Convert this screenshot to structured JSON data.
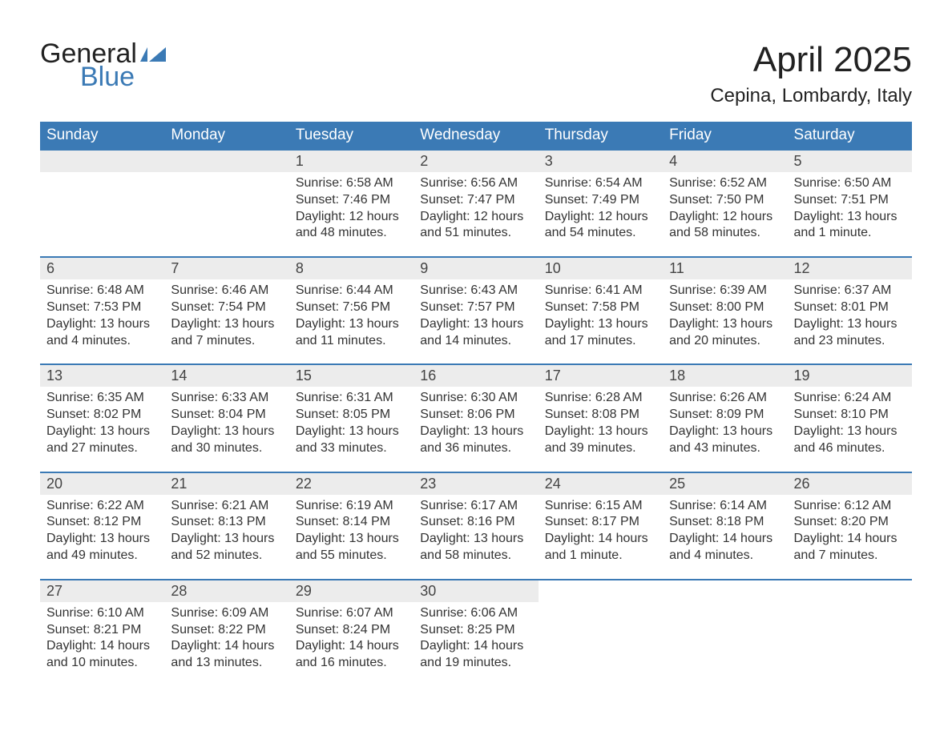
{
  "brand": {
    "name1": "General",
    "name2": "Blue"
  },
  "title": "April 2025",
  "location": "Cepina, Lombardy, Italy",
  "colors": {
    "header_bg": "#3b7ab5",
    "header_text": "#ffffff",
    "daynum_bg": "#ececec",
    "border_top": "#3b7ab5",
    "body_text": "#333333",
    "page_bg": "#ffffff"
  },
  "day_headers": [
    "Sunday",
    "Monday",
    "Tuesday",
    "Wednesday",
    "Thursday",
    "Friday",
    "Saturday"
  ],
  "weeks": [
    {
      "nums": [
        "",
        "",
        "1",
        "2",
        "3",
        "4",
        "5"
      ],
      "details": [
        "",
        "",
        "Sunrise: 6:58 AM\nSunset: 7:46 PM\nDaylight: 12 hours and 48 minutes.",
        "Sunrise: 6:56 AM\nSunset: 7:47 PM\nDaylight: 12 hours and 51 minutes.",
        "Sunrise: 6:54 AM\nSunset: 7:49 PM\nDaylight: 12 hours and 54 minutes.",
        "Sunrise: 6:52 AM\nSunset: 7:50 PM\nDaylight: 12 hours and 58 minutes.",
        "Sunrise: 6:50 AM\nSunset: 7:51 PM\nDaylight: 13 hours and 1 minute."
      ]
    },
    {
      "nums": [
        "6",
        "7",
        "8",
        "9",
        "10",
        "11",
        "12"
      ],
      "details": [
        "Sunrise: 6:48 AM\nSunset: 7:53 PM\nDaylight: 13 hours and 4 minutes.",
        "Sunrise: 6:46 AM\nSunset: 7:54 PM\nDaylight: 13 hours and 7 minutes.",
        "Sunrise: 6:44 AM\nSunset: 7:56 PM\nDaylight: 13 hours and 11 minutes.",
        "Sunrise: 6:43 AM\nSunset: 7:57 PM\nDaylight: 13 hours and 14 minutes.",
        "Sunrise: 6:41 AM\nSunset: 7:58 PM\nDaylight: 13 hours and 17 minutes.",
        "Sunrise: 6:39 AM\nSunset: 8:00 PM\nDaylight: 13 hours and 20 minutes.",
        "Sunrise: 6:37 AM\nSunset: 8:01 PM\nDaylight: 13 hours and 23 minutes."
      ]
    },
    {
      "nums": [
        "13",
        "14",
        "15",
        "16",
        "17",
        "18",
        "19"
      ],
      "details": [
        "Sunrise: 6:35 AM\nSunset: 8:02 PM\nDaylight: 13 hours and 27 minutes.",
        "Sunrise: 6:33 AM\nSunset: 8:04 PM\nDaylight: 13 hours and 30 minutes.",
        "Sunrise: 6:31 AM\nSunset: 8:05 PM\nDaylight: 13 hours and 33 minutes.",
        "Sunrise: 6:30 AM\nSunset: 8:06 PM\nDaylight: 13 hours and 36 minutes.",
        "Sunrise: 6:28 AM\nSunset: 8:08 PM\nDaylight: 13 hours and 39 minutes.",
        "Sunrise: 6:26 AM\nSunset: 8:09 PM\nDaylight: 13 hours and 43 minutes.",
        "Sunrise: 6:24 AM\nSunset: 8:10 PM\nDaylight: 13 hours and 46 minutes."
      ]
    },
    {
      "nums": [
        "20",
        "21",
        "22",
        "23",
        "24",
        "25",
        "26"
      ],
      "details": [
        "Sunrise: 6:22 AM\nSunset: 8:12 PM\nDaylight: 13 hours and 49 minutes.",
        "Sunrise: 6:21 AM\nSunset: 8:13 PM\nDaylight: 13 hours and 52 minutes.",
        "Sunrise: 6:19 AM\nSunset: 8:14 PM\nDaylight: 13 hours and 55 minutes.",
        "Sunrise: 6:17 AM\nSunset: 8:16 PM\nDaylight: 13 hours and 58 minutes.",
        "Sunrise: 6:15 AM\nSunset: 8:17 PM\nDaylight: 14 hours and 1 minute.",
        "Sunrise: 6:14 AM\nSunset: 8:18 PM\nDaylight: 14 hours and 4 minutes.",
        "Sunrise: 6:12 AM\nSunset: 8:20 PM\nDaylight: 14 hours and 7 minutes."
      ]
    },
    {
      "nums": [
        "27",
        "28",
        "29",
        "30",
        "",
        "",
        ""
      ],
      "details": [
        "Sunrise: 6:10 AM\nSunset: 8:21 PM\nDaylight: 14 hours and 10 minutes.",
        "Sunrise: 6:09 AM\nSunset: 8:22 PM\nDaylight: 14 hours and 13 minutes.",
        "Sunrise: 6:07 AM\nSunset: 8:24 PM\nDaylight: 14 hours and 16 minutes.",
        "Sunrise: 6:06 AM\nSunset: 8:25 PM\nDaylight: 14 hours and 19 minutes.",
        "",
        "",
        ""
      ]
    }
  ]
}
